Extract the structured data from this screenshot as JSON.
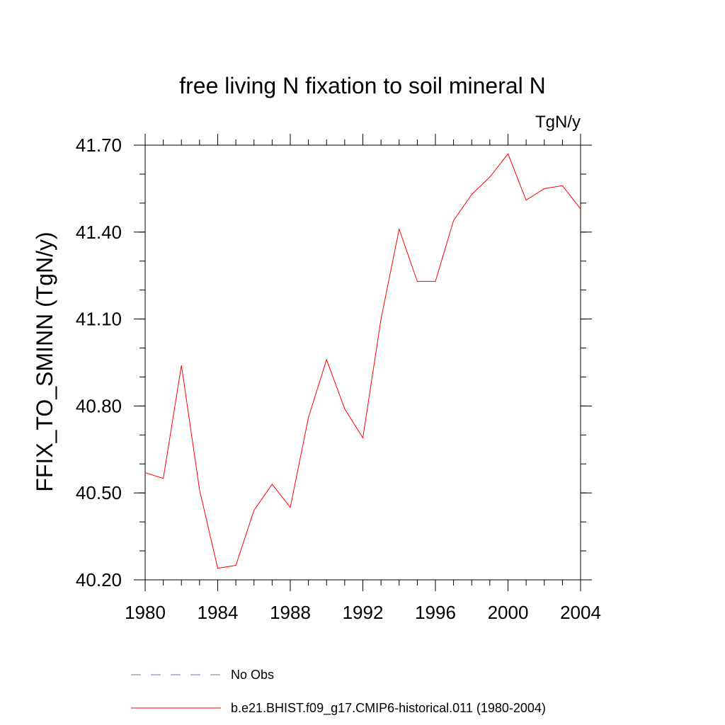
{
  "chart_data": {
    "type": "line",
    "title": "free living N fixation to soil mineral N",
    "units": "TgN/y",
    "ylabel": "FFIX_TO_SMINN  (TgN/y)",
    "xlabel": "",
    "xlim": [
      1980,
      2004
    ],
    "ylim": [
      40.2,
      41.7
    ],
    "x_ticks": [
      1980,
      1984,
      1988,
      1992,
      1996,
      2000,
      2004
    ],
    "y_ticks": [
      "40.20",
      "40.50",
      "40.80",
      "41.10",
      "41.40",
      "41.70"
    ],
    "x_minor_step": 1,
    "y_minor_step": 0.1,
    "grid": false,
    "legend_position": "bottom",
    "series": [
      {
        "name": "b.e21.BHIST.f09_g17.CMIP6-historical.011 (1980-2004)",
        "color": "#ff0000",
        "style": "solid",
        "x": [
          1980,
          1981,
          1982,
          1983,
          1984,
          1985,
          1986,
          1987,
          1988,
          1989,
          1990,
          1991,
          1992,
          1993,
          1994,
          1995,
          1996,
          1997,
          1998,
          1999,
          2000,
          2001,
          2002,
          2003,
          2004
        ],
        "values": [
          40.57,
          40.55,
          40.94,
          40.51,
          40.24,
          40.25,
          40.44,
          40.53,
          40.45,
          40.76,
          40.96,
          40.79,
          40.69,
          41.1,
          41.41,
          41.23,
          41.23,
          41.44,
          41.53,
          41.59,
          41.67,
          41.51,
          41.55,
          41.56,
          41.48
        ]
      }
    ],
    "legend": [
      {
        "label": "No Obs",
        "color": "#7a6fb0",
        "style": "dashed"
      },
      {
        "label": "b.e21.BHIST.f09_g17.CMIP6-historical.011 (1980-2004)",
        "color": "#ff0000",
        "style": "solid"
      }
    ]
  }
}
